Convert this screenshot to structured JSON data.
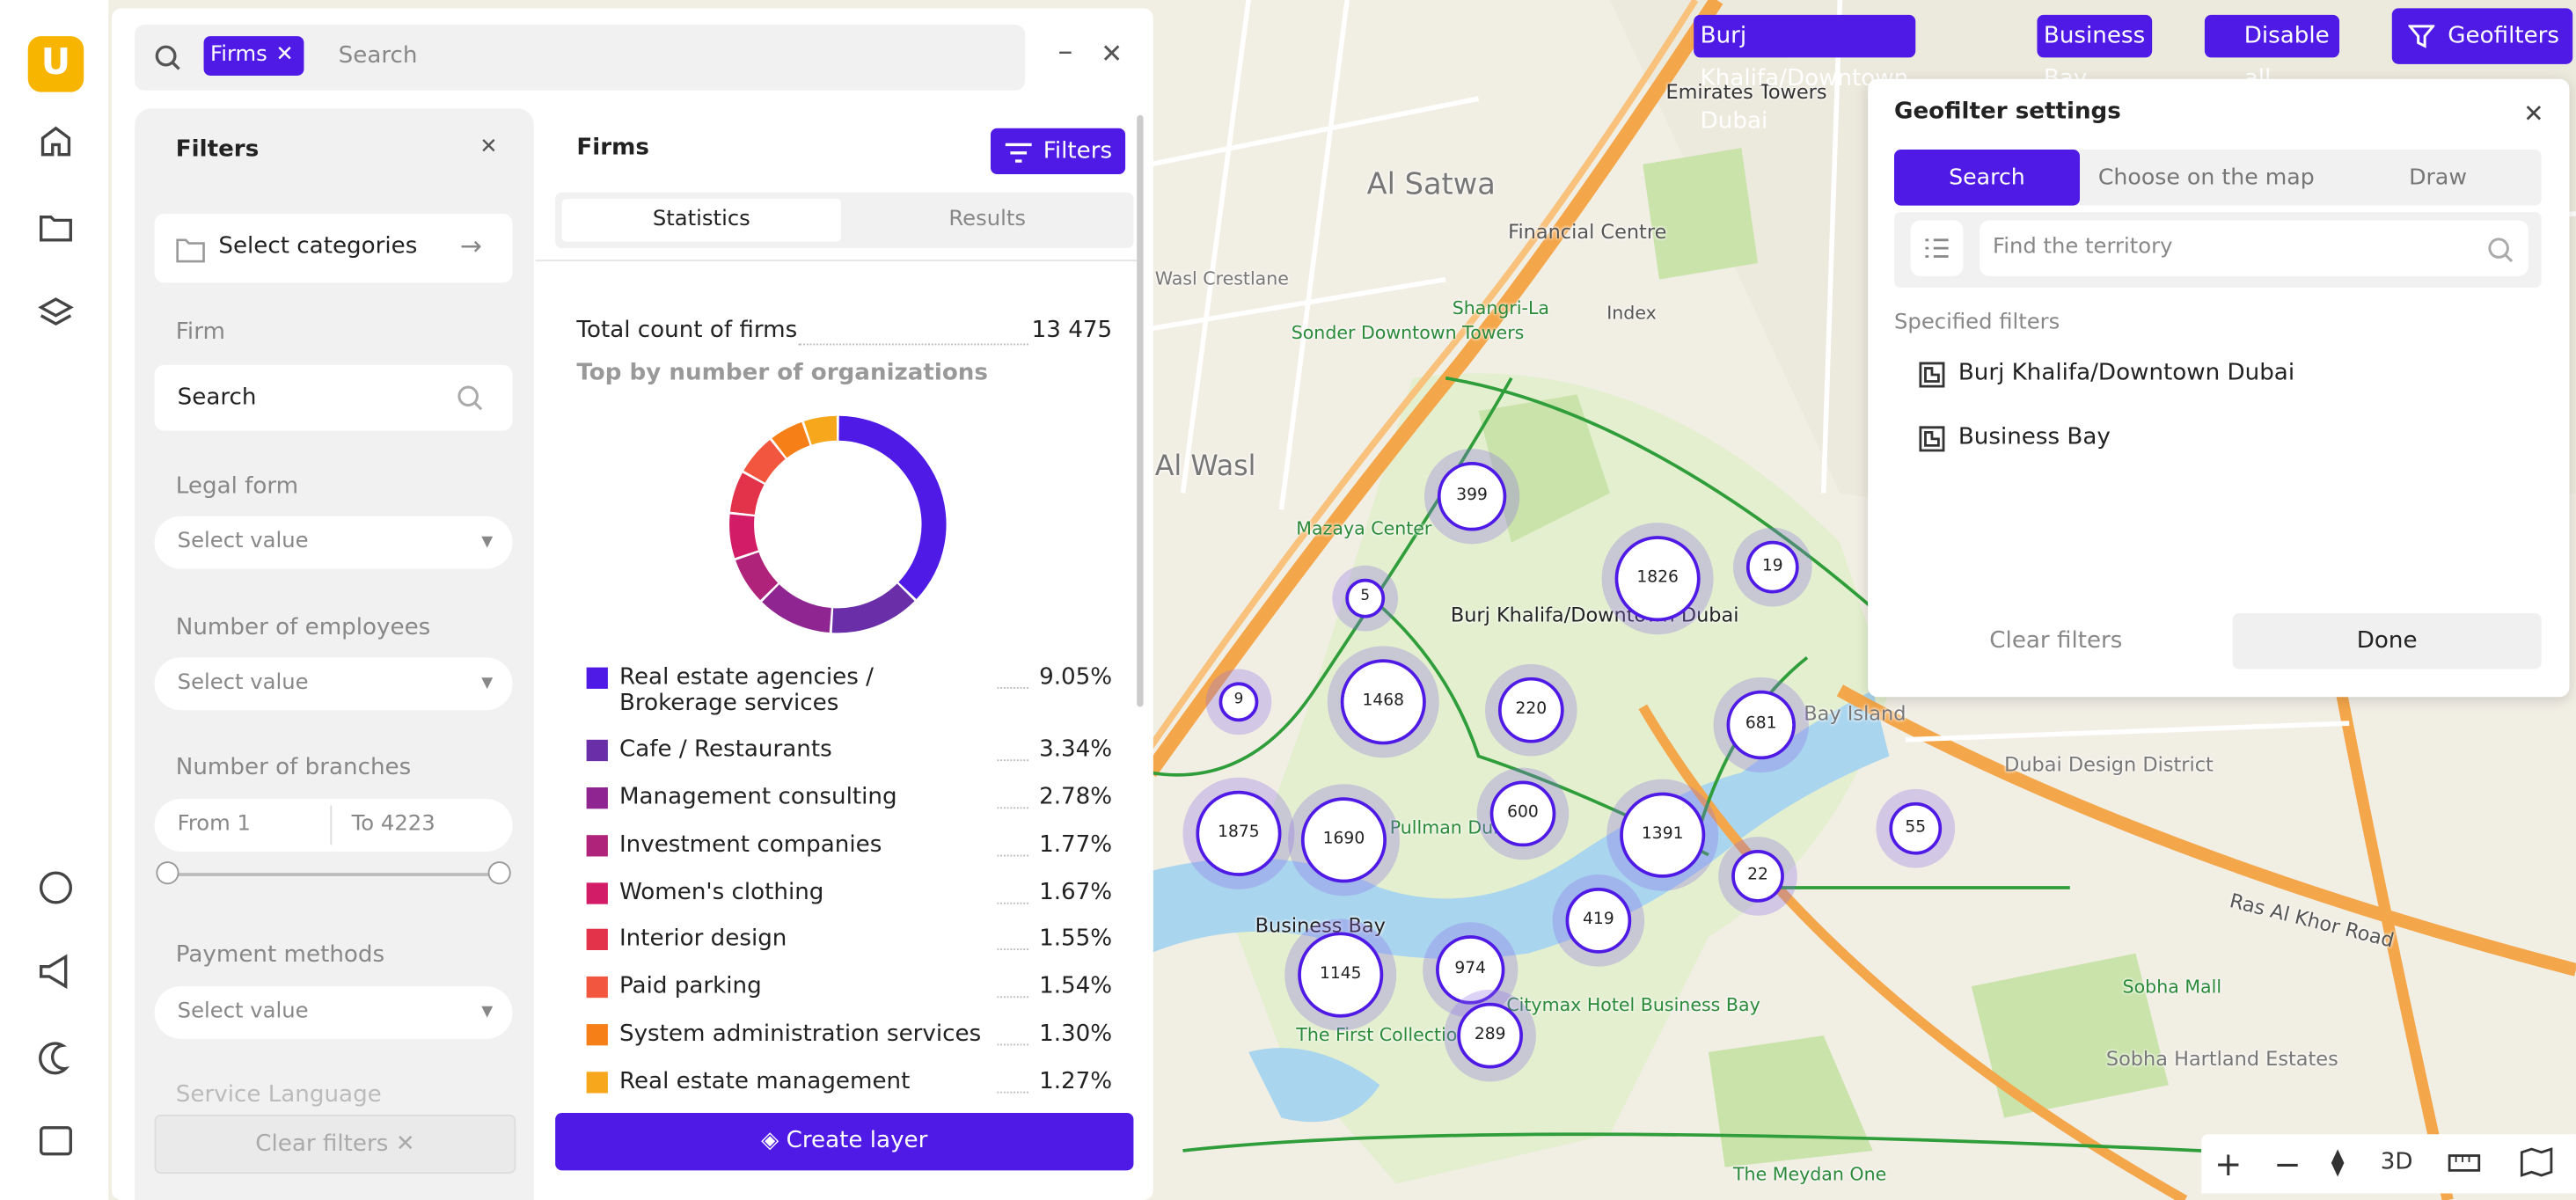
{
  "sidebar": {
    "logo": "U"
  },
  "search": {
    "chip": "Firms",
    "placeholder": "Search"
  },
  "filters": {
    "title": "Filters",
    "select_categories": "Select categories",
    "firm_label": "Firm",
    "firm_placeholder": "Search",
    "legal_form": "Legal form",
    "legal_placeholder": "Select value",
    "employees": "Number of employees",
    "employees_placeholder": "Select value",
    "branches": "Number of branches",
    "branches_from": "From 1",
    "branches_to": "To 4223",
    "payment": "Payment methods",
    "payment_placeholder": "Select value",
    "service_language": "Service Language",
    "clear": "Clear filters"
  },
  "firms": {
    "title": "Firms",
    "filters_button": "Filters",
    "tabs": [
      "Statistics",
      "Results"
    ],
    "total_label": "Total count of firms",
    "total_value": "13 475",
    "top_label": "Top by number of organizations",
    "items": [
      {
        "name": "Real estate agencies / Brokerage services",
        "share": {
          "value": 9.05,
          "label": "9.05%"
        },
        "color": "#4f1ae6"
      },
      {
        "name": "Cafe / Restaurants",
        "share": {
          "value": 3.34,
          "label": "3.34%"
        },
        "color": "#6a2ea8"
      },
      {
        "name": "Management consulting",
        "share": {
          "value": 2.78,
          "label": "2.78%"
        },
        "color": "#8e2590"
      },
      {
        "name": "Investment companies",
        "share": {
          "value": 1.77,
          "label": "1.77%"
        },
        "color": "#b0237a"
      },
      {
        "name": "Women's clothing",
        "share": {
          "value": 1.67,
          "label": "1.67%"
        },
        "color": "#d21c68"
      },
      {
        "name": "Interior design",
        "share": {
          "value": 1.55,
          "label": "1.55%"
        },
        "color": "#e2334a"
      },
      {
        "name": "Paid parking",
        "share": {
          "value": 1.54,
          "label": "1.54%"
        },
        "color": "#f2563e"
      },
      {
        "name": "System administration services",
        "share": {
          "value": 1.3,
          "label": "1.30%"
        },
        "color": "#f77f17"
      },
      {
        "name": "Real estate management",
        "share": {
          "value": 1.27,
          "label": "1.27%"
        },
        "color": "#f6a71b"
      }
    ],
    "create_layer": "Create layer"
  },
  "map": {
    "chips": [
      "Burj Khalifa/Downtown Dubai",
      "Business Bay",
      "Disable all"
    ],
    "geofilters": "Geofilters",
    "labels": [
      "Al Satwa",
      "Al Wasl",
      "Financial Centre",
      "Index",
      "Shangri-La",
      "Sonder Downtown Towers",
      "Mazaya Center",
      "Emirates Towers",
      "Burj Khalifa/Downtown Dubai",
      "Business Bay",
      "Dubai Design District",
      "Ras Al Khor Road",
      "Sobha Mall",
      "Sobha Hartland Estates",
      "The Meydan One",
      "The First Collection Bay",
      "Citymax Hotel Business Bay",
      "Bay Island",
      "Wasl Crestlane",
      "Pullman Dubai"
    ],
    "clusters": [
      "399",
      "1826",
      "19",
      "5",
      "1468",
      "220",
      "9",
      "681",
      "1875",
      "1690",
      "600",
      "1391",
      "22",
      "55",
      "419",
      "1145",
      "974",
      "289"
    ],
    "three_d": "3D"
  },
  "geofilter": {
    "title": "Geofilter settings",
    "tabs": [
      "Search",
      "Choose on the map",
      "Draw"
    ],
    "placeholder": "Find the territory",
    "specified": "Specified filters",
    "filters": [
      "Burj Khalifa/Downtown Dubai",
      "Business Bay"
    ],
    "clear": "Clear filters",
    "done": "Done"
  }
}
